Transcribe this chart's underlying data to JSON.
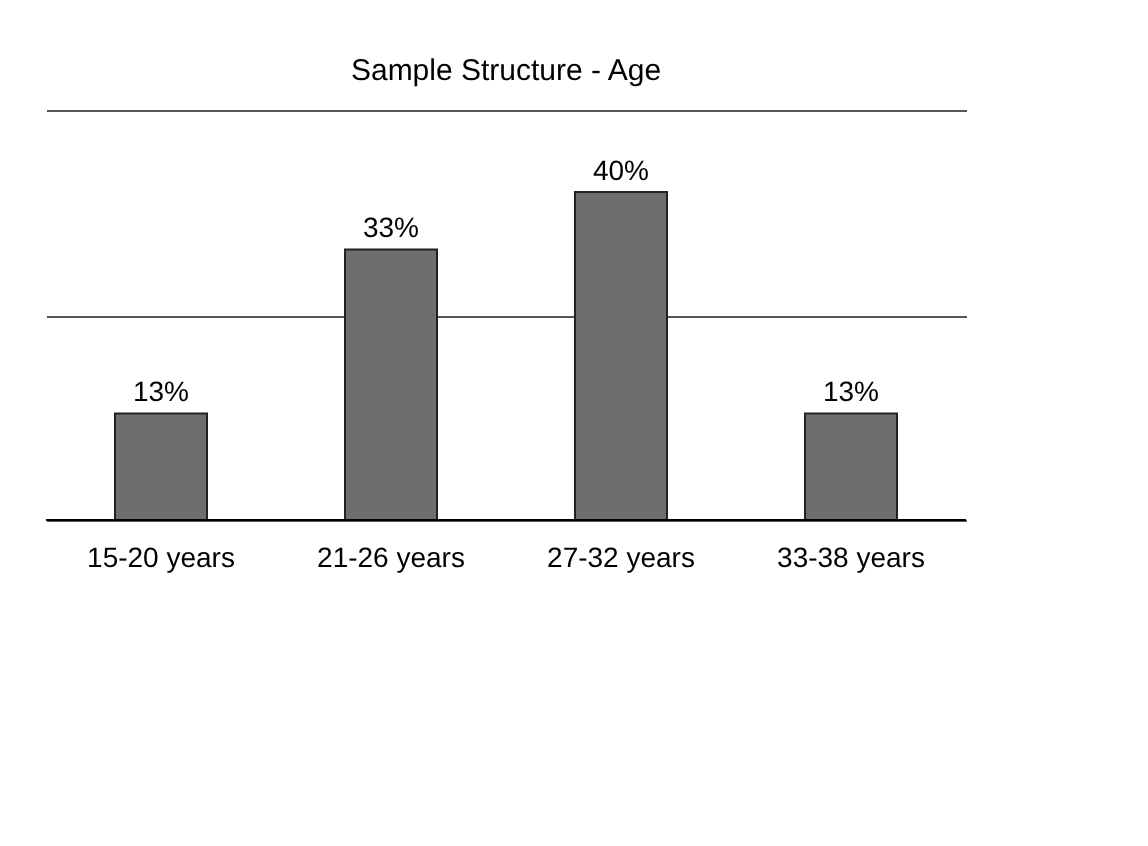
{
  "chart_data": {
    "type": "bar",
    "title": "Sample Structure - Age",
    "categories": [
      "15-20 years",
      "21-26 years",
      "27-32 years",
      "33-38 years"
    ],
    "values": [
      13,
      33,
      40,
      13
    ],
    "value_labels": [
      "13%",
      "33%",
      "40%",
      "13%"
    ],
    "color": "#6e6e6e",
    "ylim": [
      0,
      50
    ],
    "yticks": [
      {
        "value": 0,
        "label": null
      },
      {
        "value": 25,
        "label": null
      },
      {
        "value": 50,
        "label": null
      }
    ],
    "tick_labels": "x",
    "grid": "y"
  }
}
